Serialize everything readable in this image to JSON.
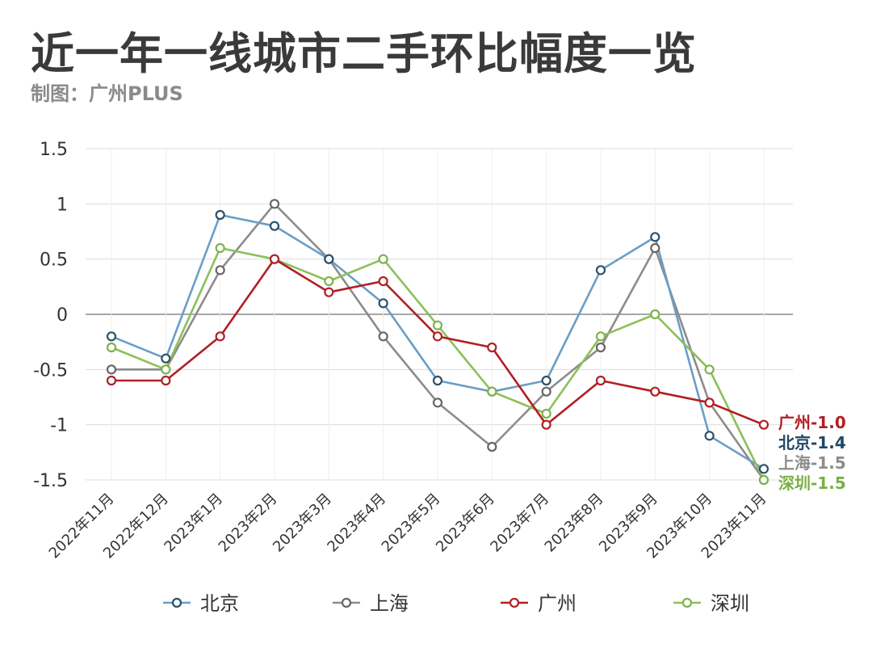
{
  "title": "近一年一线城市二手环比幅度一览",
  "subtitle": "制图：广州PLUS",
  "chart_data": {
    "type": "line",
    "x": [
      "2022年11月",
      "2022年12月",
      "2023年1月",
      "2023年2月",
      "2023年3月",
      "2023年4月",
      "2023年5月",
      "2023年6月",
      "2023年7月",
      "2023年8月",
      "2023年9月",
      "2023年10月",
      "2023年11月"
    ],
    "ylim": [
      -1.5,
      1.5
    ],
    "yticks": [
      1.5,
      1,
      0.5,
      0,
      -0.5,
      -1,
      -1.5
    ],
    "ytick_labels": [
      "1.5",
      "1",
      "0.5",
      "0",
      "-0.5",
      "-1",
      "-1.5"
    ],
    "grid": true,
    "legend_position": "bottom",
    "series": [
      {
        "name": "北京",
        "color": "#6a9ec6",
        "marker_color": "#2e4f66",
        "values": [
          -0.2,
          -0.4,
          0.9,
          0.8,
          0.5,
          0.1,
          -0.6,
          -0.7,
          -0.6,
          0.4,
          0.7,
          -1.1,
          -1.4
        ],
        "end_label": "北京-1.4",
        "end_label_color": "#1f4766"
      },
      {
        "name": "上海",
        "color": "#8c8c8c",
        "marker_color": "#666666",
        "values": [
          -0.5,
          -0.5,
          0.4,
          1.0,
          0.5,
          -0.2,
          -0.8,
          -1.2,
          -0.7,
          -0.3,
          0.6,
          -0.8,
          -1.5
        ],
        "end_label": "上海-1.5",
        "end_label_color": "#8c8c8c"
      },
      {
        "name": "广州",
        "color": "#b11f24",
        "marker_color": "#b11f24",
        "values": [
          -0.6,
          -0.6,
          -0.2,
          0.5,
          0.2,
          0.3,
          -0.2,
          -0.3,
          -1.0,
          -0.6,
          -0.7,
          -0.8,
          -1.0
        ],
        "end_label": "广州-1.0",
        "end_label_color": "#b11f24"
      },
      {
        "name": "深圳",
        "color": "#8dbf5a",
        "marker_color": "#7fb24c",
        "values": [
          -0.3,
          -0.5,
          0.6,
          0.5,
          0.3,
          0.5,
          -0.1,
          -0.7,
          -0.9,
          -0.2,
          0.0,
          -0.5,
          -1.5
        ],
        "end_label": "深圳-1.5",
        "end_label_color": "#78b042"
      }
    ]
  }
}
